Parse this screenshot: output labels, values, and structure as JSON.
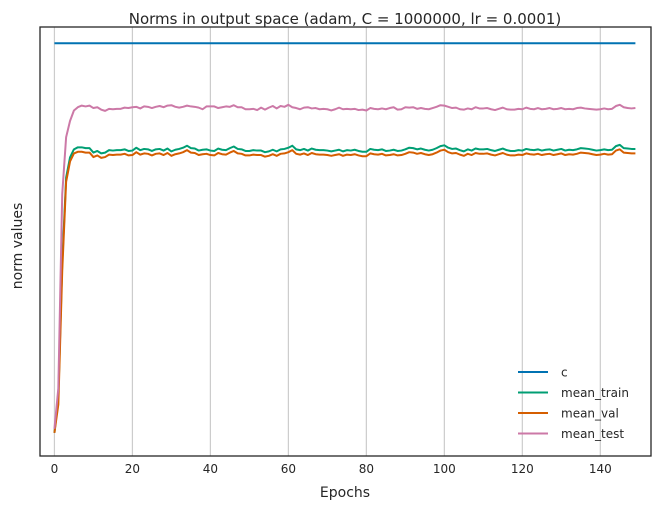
{
  "chart_data": {
    "type": "line",
    "title": "Norms in output space (adam, C = 1000000, lr = 0.0001)",
    "xlabel": "Epochs",
    "ylabel": "norm values",
    "xlim": [
      -3.7,
      153
    ],
    "ylim": [
      0,
      1
    ],
    "x_ticks": [
      0,
      20,
      40,
      60,
      80,
      100,
      120,
      140
    ],
    "x_tick_labels": [
      "0",
      "20",
      "40",
      "60",
      "80",
      "100",
      "120",
      "140"
    ],
    "y_ticks_visible": false,
    "grid": "vertical",
    "legend_loc": "lower right",
    "x": {
      "start": 0,
      "end": 149,
      "step": 1
    },
    "series": [
      {
        "name": "c",
        "color": "#0072B2",
        "values": [
          0.992
        ]
      },
      {
        "name": "mean_train",
        "color": "#009E73",
        "values": [
          0.03,
          0.12,
          0.45,
          0.66,
          0.71,
          0.73,
          0.735,
          0.735,
          0.733,
          0.733,
          0.722,
          0.726,
          0.72,
          0.722,
          0.728,
          0.727,
          0.728,
          0.728,
          0.73,
          0.726,
          0.727,
          0.734,
          0.728,
          0.731,
          0.73,
          0.726,
          0.73,
          0.731,
          0.727,
          0.732,
          0.725,
          0.729,
          0.731,
          0.734,
          0.739,
          0.733,
          0.732,
          0.727,
          0.729,
          0.73,
          0.727,
          0.726,
          0.732,
          0.729,
          0.728,
          0.733,
          0.737,
          0.731,
          0.73,
          0.726,
          0.726,
          0.728,
          0.727,
          0.727,
          0.723,
          0.725,
          0.729,
          0.725,
          0.73,
          0.731,
          0.734,
          0.739,
          0.73,
          0.728,
          0.731,
          0.727,
          0.732,
          0.729,
          0.728,
          0.728,
          0.727,
          0.725,
          0.727,
          0.729,
          0.725,
          0.728,
          0.727,
          0.729,
          0.726,
          0.724,
          0.724,
          0.731,
          0.729,
          0.728,
          0.73,
          0.726,
          0.727,
          0.729,
          0.726,
          0.727,
          0.73,
          0.734,
          0.733,
          0.73,
          0.732,
          0.729,
          0.727,
          0.729,
          0.733,
          0.738,
          0.74,
          0.734,
          0.731,
          0.732,
          0.728,
          0.725,
          0.73,
          0.727,
          0.732,
          0.73,
          0.73,
          0.731,
          0.728,
          0.726,
          0.729,
          0.732,
          0.728,
          0.726,
          0.726,
          0.728,
          0.727,
          0.731,
          0.729,
          0.728,
          0.73,
          0.727,
          0.729,
          0.73,
          0.727,
          0.729,
          0.731,
          0.727,
          0.729,
          0.728,
          0.73,
          0.733,
          0.732,
          0.731,
          0.729,
          0.727,
          0.728,
          0.73,
          0.728,
          0.729,
          0.738,
          0.741,
          0.733,
          0.732,
          0.731,
          0.731
        ]
      },
      {
        "name": "mean_val",
        "color": "#D55E00",
        "values": [
          0.03,
          0.1,
          0.43,
          0.65,
          0.7,
          0.72,
          0.724,
          0.724,
          0.722,
          0.722,
          0.711,
          0.715,
          0.709,
          0.711,
          0.717,
          0.716,
          0.717,
          0.717,
          0.719,
          0.715,
          0.716,
          0.723,
          0.717,
          0.72,
          0.719,
          0.715,
          0.719,
          0.72,
          0.716,
          0.721,
          0.714,
          0.718,
          0.72,
          0.723,
          0.728,
          0.722,
          0.721,
          0.716,
          0.718,
          0.719,
          0.716,
          0.715,
          0.721,
          0.718,
          0.717,
          0.722,
          0.726,
          0.72,
          0.719,
          0.715,
          0.715,
          0.717,
          0.716,
          0.716,
          0.712,
          0.714,
          0.718,
          0.714,
          0.719,
          0.72,
          0.723,
          0.728,
          0.719,
          0.717,
          0.72,
          0.716,
          0.721,
          0.718,
          0.717,
          0.717,
          0.716,
          0.714,
          0.716,
          0.718,
          0.714,
          0.717,
          0.716,
          0.718,
          0.715,
          0.713,
          0.713,
          0.72,
          0.718,
          0.717,
          0.719,
          0.715,
          0.716,
          0.718,
          0.715,
          0.716,
          0.719,
          0.723,
          0.722,
          0.719,
          0.721,
          0.718,
          0.716,
          0.718,
          0.722,
          0.727,
          0.729,
          0.723,
          0.72,
          0.721,
          0.717,
          0.714,
          0.719,
          0.716,
          0.721,
          0.719,
          0.719,
          0.72,
          0.717,
          0.715,
          0.718,
          0.721,
          0.717,
          0.715,
          0.715,
          0.717,
          0.716,
          0.72,
          0.718,
          0.717,
          0.719,
          0.716,
          0.718,
          0.719,
          0.716,
          0.718,
          0.72,
          0.716,
          0.718,
          0.717,
          0.719,
          0.722,
          0.721,
          0.72,
          0.718,
          0.716,
          0.717,
          0.719,
          0.717,
          0.718,
          0.727,
          0.73,
          0.722,
          0.721,
          0.72,
          0.72
        ]
      },
      {
        "name": "mean_test",
        "color": "#CC79A7",
        "values": [
          0.04,
          0.14,
          0.62,
          0.76,
          0.8,
          0.826,
          0.834,
          0.838,
          0.836,
          0.838,
          0.832,
          0.834,
          0.828,
          0.825,
          0.83,
          0.829,
          0.83,
          0.83,
          0.833,
          0.832,
          0.834,
          0.835,
          0.831,
          0.836,
          0.835,
          0.832,
          0.835,
          0.837,
          0.834,
          0.838,
          0.839,
          0.835,
          0.833,
          0.835,
          0.838,
          0.836,
          0.835,
          0.833,
          0.829,
          0.836,
          0.836,
          0.836,
          0.832,
          0.834,
          0.836,
          0.835,
          0.839,
          0.834,
          0.834,
          0.829,
          0.829,
          0.83,
          0.827,
          0.833,
          0.828,
          0.833,
          0.837,
          0.831,
          0.837,
          0.835,
          0.84,
          0.834,
          0.832,
          0.829,
          0.833,
          0.834,
          0.831,
          0.832,
          0.829,
          0.83,
          0.829,
          0.826,
          0.829,
          0.833,
          0.829,
          0.83,
          0.829,
          0.83,
          0.827,
          0.828,
          0.826,
          0.832,
          0.83,
          0.829,
          0.831,
          0.829,
          0.832,
          0.834,
          0.828,
          0.829,
          0.834,
          0.833,
          0.834,
          0.83,
          0.832,
          0.83,
          0.829,
          0.832,
          0.835,
          0.839,
          0.838,
          0.835,
          0.832,
          0.833,
          0.829,
          0.828,
          0.831,
          0.829,
          0.834,
          0.831,
          0.831,
          0.832,
          0.829,
          0.827,
          0.83,
          0.833,
          0.829,
          0.828,
          0.828,
          0.83,
          0.829,
          0.833,
          0.83,
          0.829,
          0.832,
          0.829,
          0.83,
          0.832,
          0.829,
          0.83,
          0.832,
          0.829,
          0.83,
          0.829,
          0.832,
          0.833,
          0.831,
          0.83,
          0.829,
          0.828,
          0.829,
          0.831,
          0.829,
          0.83,
          0.837,
          0.84,
          0.834,
          0.832,
          0.831,
          0.832
        ]
      }
    ]
  }
}
